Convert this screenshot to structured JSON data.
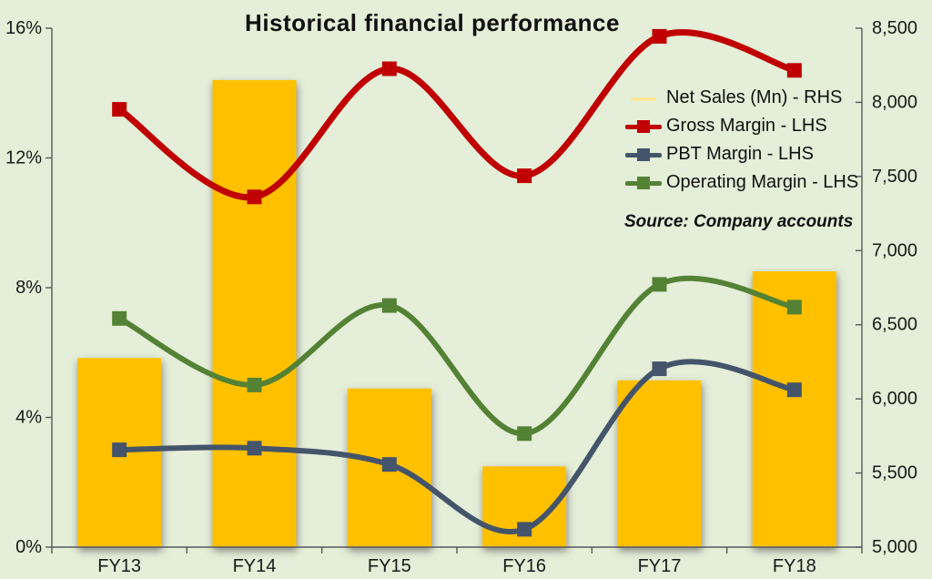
{
  "title": "Historical financial performance",
  "source_note": "Source: Company accounts",
  "colors": {
    "background": "#e4eed8",
    "bar": "#ffc000",
    "bar_legend_swatch": "#ffe699",
    "gross_margin": "#c00000",
    "pbt_margin": "#44546a",
    "operating_margin": "#548235",
    "axis_line": "#595959",
    "label_text": "#1a1a1a"
  },
  "legend": {
    "items": [
      {
        "label": "Net Sales (Mn) - RHS",
        "color": "#ffe699",
        "marker": false
      },
      {
        "label": "Gross Margin - LHS",
        "color": "#c00000",
        "marker": true
      },
      {
        "label": "PBT Margin - LHS",
        "color": "#44546a",
        "marker": true
      },
      {
        "label": "Operating Margin - LHS",
        "color": "#548235",
        "marker": true
      }
    ]
  },
  "chart_data": {
    "type": "combo",
    "title": "Historical financial performance",
    "categories": [
      "FY13",
      "FY14",
      "FY15",
      "FY16",
      "FY17",
      "FY18"
    ],
    "series": [
      {
        "name": "Net Sales (Mn) - RHS",
        "type": "bar",
        "axis": "right",
        "color": "#ffc000",
        "values": [
          6275,
          8150,
          6070,
          5545,
          6125,
          6860
        ]
      },
      {
        "name": "Operating Margin - LHS",
        "type": "line",
        "axis": "left",
        "color": "#548235",
        "values": [
          7.05,
          5.0,
          7.45,
          3.5,
          8.1,
          7.4
        ]
      },
      {
        "name": "PBT Margin - LHS",
        "type": "line",
        "axis": "left",
        "color": "#44546a",
        "values": [
          3.0,
          3.05,
          2.55,
          0.55,
          5.5,
          4.85
        ]
      },
      {
        "name": "Gross Margin - LHS",
        "type": "line",
        "axis": "left",
        "color": "#c00000",
        "values": [
          13.5,
          10.8,
          14.75,
          11.45,
          15.75,
          14.7
        ]
      }
    ],
    "left_axis": {
      "min": 0,
      "max": 16,
      "tick_values": [
        0,
        4,
        8,
        12,
        16
      ],
      "tick_labels": [
        "0%",
        "4%",
        "8%",
        "12%",
        "16%"
      ]
    },
    "right_axis": {
      "min": 5000,
      "max": 8500,
      "tick_values": [
        5000,
        5500,
        6000,
        6500,
        7000,
        7500,
        8000,
        8500
      ],
      "tick_labels": [
        "5,000",
        "5,500",
        "6,000",
        "6,500",
        "7,000",
        "7,500",
        "8,000",
        "8,500"
      ]
    },
    "grid": false,
    "legend_position": "right-inside",
    "xlabel": "",
    "ylabel_left": "",
    "ylabel_right": ""
  }
}
